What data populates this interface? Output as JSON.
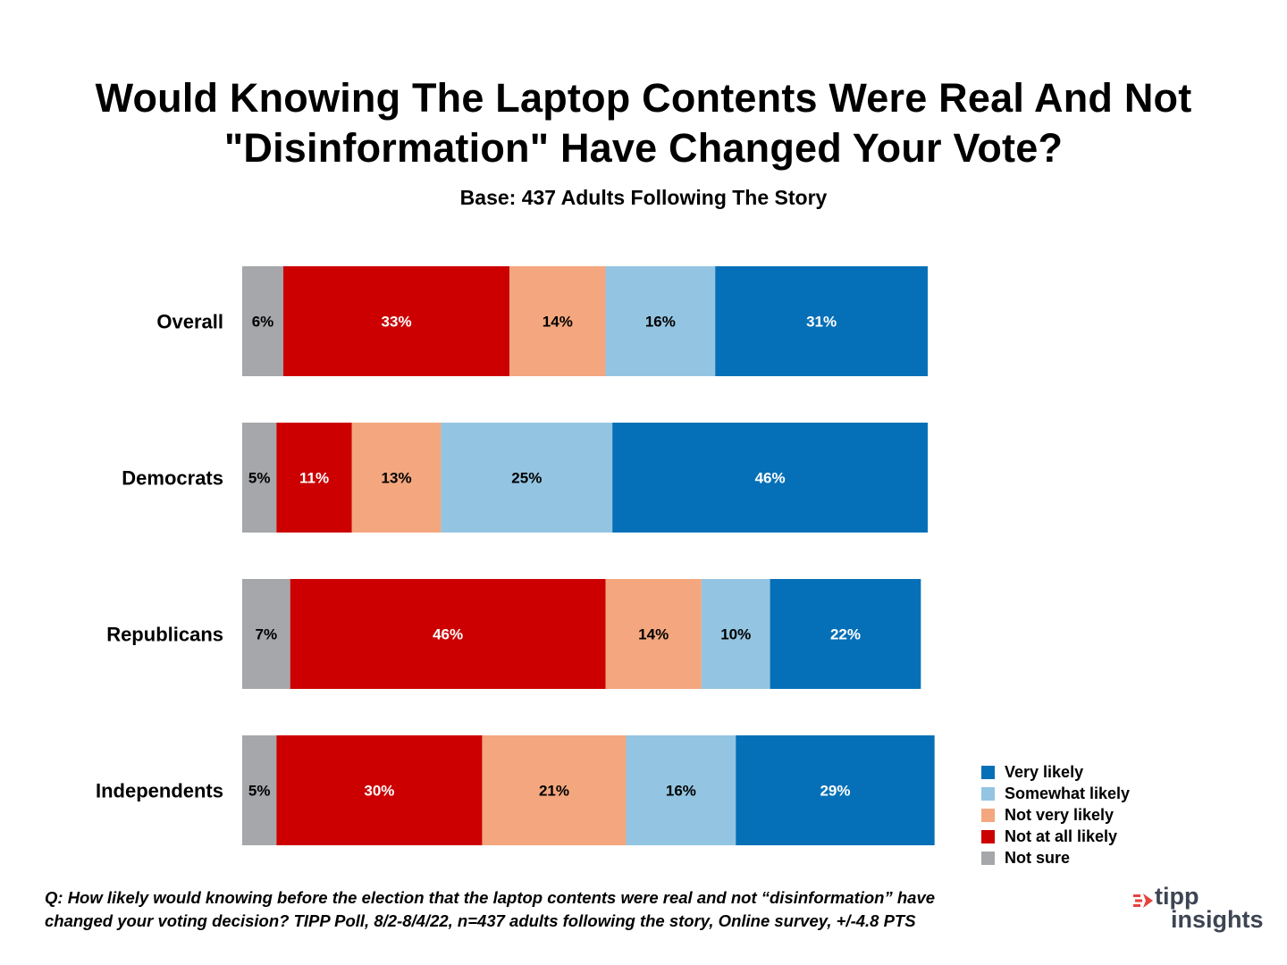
{
  "chart_data": {
    "type": "bar",
    "orientation": "horizontal",
    "stacked": true,
    "title_lines": [
      "Would Knowing The Laptop Contents Were Real And Not",
      "\"Disinformation\" Have Changed Your Vote?"
    ],
    "subtitle": "Base: 437 Adults Following The Story",
    "categories": [
      "Overall",
      "Democrats",
      "Republicans",
      "Independents"
    ],
    "series": [
      {
        "name": "Not sure",
        "color": "#a5a7aa",
        "label_color": "#000000",
        "values": [
          6,
          5,
          7,
          5
        ]
      },
      {
        "name": "Not at all likely",
        "color": "#cc0000",
        "label_color": "#ffffff",
        "values": [
          33,
          11,
          46,
          30
        ]
      },
      {
        "name": "Not very likely",
        "color": "#f4a77e",
        "label_color": "#000000",
        "values": [
          14,
          13,
          14,
          21
        ]
      },
      {
        "name": "Somewhat likely",
        "color": "#93c5e2",
        "label_color": "#000000",
        "values": [
          16,
          25,
          10,
          16
        ]
      },
      {
        "name": "Very likely",
        "color": "#0570b7",
        "label_color": "#ffffff",
        "values": [
          31,
          46,
          22,
          29
        ]
      }
    ],
    "value_suffix": "%",
    "legend_order": [
      "Very likely",
      "Somewhat likely",
      "Not very likely",
      "Not at all likely",
      "Not sure"
    ],
    "legend_position": "bottom-right",
    "grid": false
  },
  "footnote_lines": [
    "Q: How likely would knowing before the election that the laptop contents were real and not “disinformation” have",
    "changed your voting decision? TIPP Poll, 8/2-8/4/22, n=437 adults following the story, Online survey, +/-4.8 PTS"
  ],
  "logo": {
    "word1": "tipp",
    "word2": "insights",
    "accent_color": "#e8413c",
    "text_color": "#3d4452"
  }
}
